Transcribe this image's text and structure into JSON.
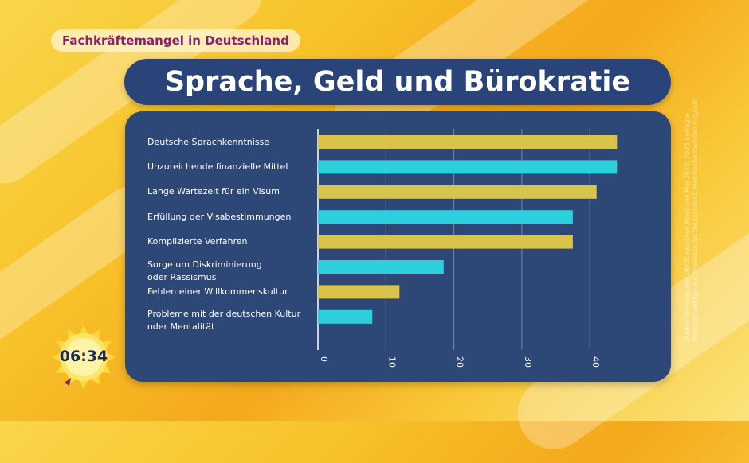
{
  "overlay": {
    "topic": "Fachkräftemangel in Deutschland",
    "title": "Sprache, Geld und Bürokratie",
    "source": "Quelle: Umfrage der OECD zwischen März und Mai 2023;\n7695 befragte Migrationswillige mit Interesse an Deutschland, Mehrfachantworten möglich",
    "clock": "06:34"
  },
  "colors": {
    "yellow_bar": "#d8c44a",
    "cyan_bar": "#2ccfdc",
    "panel": "#2d4776",
    "title_box": "#2a4479",
    "topic_text": "#8a1f6e"
  },
  "chart_data": {
    "type": "bar",
    "orientation": "horizontal",
    "categories": [
      "Deutsche Sprachkenntnisse",
      "Unzureichende finanzielle Mittel",
      "Lange Wartezeit für ein Visum",
      "Erfüllung der Visabestimmungen",
      "Komplizierte Verfahren",
      "Sorge um Diskriminierung\noder Rassismus",
      "Fehlen einer Willkommenskultur",
      "Probleme mit der deutschen Kultur\noder Mentalität"
    ],
    "values": [
      44,
      44,
      41,
      37.5,
      37.5,
      18.5,
      12,
      8
    ],
    "bar_colors": [
      "#d8c44a",
      "#2ccfdc",
      "#d8c44a",
      "#2ccfdc",
      "#d8c44a",
      "#2ccfdc",
      "#d8c44a",
      "#2ccfdc"
    ],
    "xticks": [
      "0",
      "10",
      "20",
      "30",
      "40"
    ],
    "xlim": [
      0,
      47
    ],
    "grid": true
  }
}
